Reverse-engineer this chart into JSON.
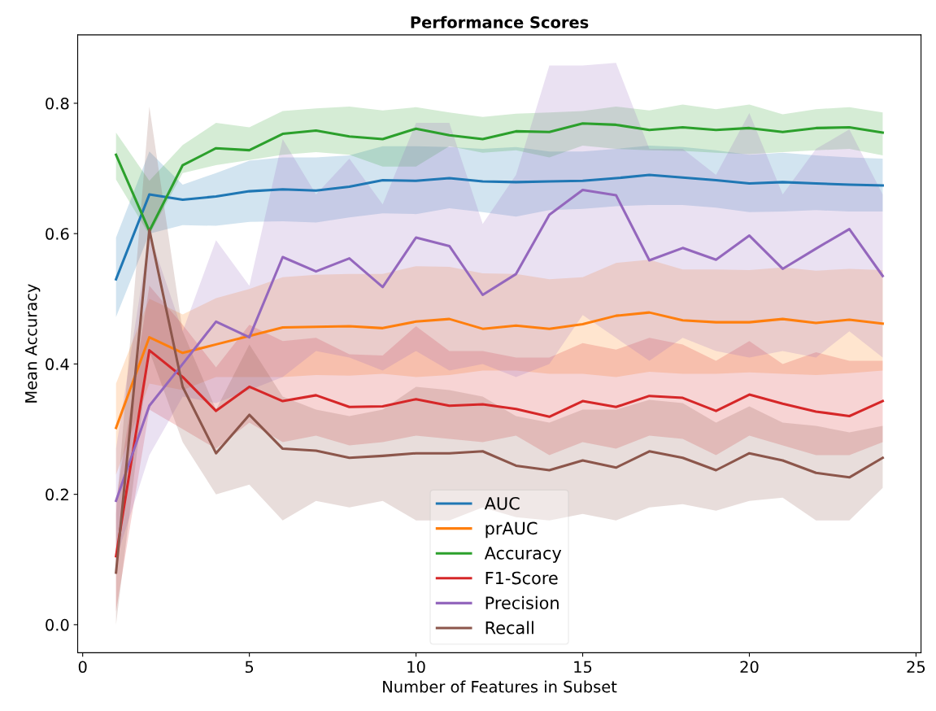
{
  "chart_data": {
    "type": "line",
    "title": "Performance Scores",
    "xlabel": "Number of Features in Subset",
    "ylabel": "Mean Accuracy",
    "x": [
      1,
      2,
      3,
      4,
      5,
      6,
      7,
      8,
      9,
      10,
      11,
      12,
      13,
      14,
      15,
      16,
      17,
      18,
      19,
      20,
      21,
      22,
      23,
      24
    ],
    "xlim": [
      -0.15,
      25.15
    ],
    "xticks": [
      0,
      5,
      10,
      15,
      20,
      25
    ],
    "ylim": [
      -0.043,
      0.905
    ],
    "yticks": [
      {
        "value": 0,
        "label": "0.0"
      },
      0.2,
      0.4,
      0.6,
      0.8
    ],
    "grid": false,
    "legend": "bottom",
    "marker": "none",
    "line_style": "solid",
    "series": [
      {
        "name": "AUC",
        "color": "#1f77b4",
        "values": [
          0.53,
          0.66,
          0.652,
          0.657,
          0.665,
          0.668,
          0.666,
          0.672,
          0.682,
          0.681,
          0.685,
          0.68,
          0.679,
          0.68,
          0.681,
          0.685,
          0.69,
          0.686,
          0.682,
          0.677,
          0.679,
          0.677,
          0.675,
          0.674
        ],
        "lower": [
          0.472,
          0.6,
          0.613,
          0.612,
          0.618,
          0.619,
          0.617,
          0.625,
          0.631,
          0.63,
          0.639,
          0.633,
          0.626,
          0.636,
          0.638,
          0.642,
          0.644,
          0.644,
          0.64,
          0.633,
          0.634,
          0.636,
          0.634,
          0.634
        ],
        "upper": [
          0.594,
          0.726,
          0.675,
          0.693,
          0.712,
          0.717,
          0.717,
          0.72,
          0.734,
          0.734,
          0.733,
          0.73,
          0.733,
          0.726,
          0.726,
          0.73,
          0.735,
          0.733,
          0.728,
          0.721,
          0.724,
          0.72,
          0.717,
          0.715
        ]
      },
      {
        "name": "prAUC",
        "color": "#ff7f0e",
        "values": [
          0.302,
          0.441,
          0.417,
          0.43,
          0.443,
          0.456,
          0.457,
          0.458,
          0.455,
          0.465,
          0.469,
          0.454,
          0.459,
          0.454,
          0.461,
          0.474,
          0.479,
          0.467,
          0.464,
          0.464,
          0.469,
          0.463,
          0.468,
          0.462
        ],
        "lower": [
          0.23,
          0.37,
          0.36,
          0.38,
          0.38,
          0.38,
          0.383,
          0.382,
          0.385,
          0.38,
          0.383,
          0.39,
          0.39,
          0.385,
          0.385,
          0.38,
          0.388,
          0.385,
          0.385,
          0.387,
          0.385,
          0.383,
          0.386,
          0.39
        ],
        "upper": [
          0.37,
          0.5,
          0.476,
          0.501,
          0.515,
          0.533,
          0.537,
          0.538,
          0.538,
          0.55,
          0.549,
          0.539,
          0.538,
          0.53,
          0.533,
          0.555,
          0.56,
          0.545,
          0.545,
          0.544,
          0.548,
          0.543,
          0.546,
          0.544
        ]
      },
      {
        "name": "Accuracy",
        "color": "#2ca02c",
        "values": [
          0.721,
          0.604,
          0.705,
          0.731,
          0.728,
          0.753,
          0.758,
          0.749,
          0.745,
          0.761,
          0.751,
          0.745,
          0.757,
          0.756,
          0.769,
          0.767,
          0.759,
          0.763,
          0.759,
          0.762,
          0.756,
          0.762,
          0.763,
          0.755
        ],
        "lower": [
          0.683,
          0.598,
          0.693,
          0.705,
          0.713,
          0.721,
          0.725,
          0.721,
          0.703,
          0.703,
          0.734,
          0.724,
          0.728,
          0.717,
          0.735,
          0.73,
          0.728,
          0.727,
          0.724,
          0.722,
          0.725,
          0.728,
          0.73,
          0.72
        ],
        "upper": [
          0.755,
          0.681,
          0.736,
          0.77,
          0.763,
          0.788,
          0.792,
          0.795,
          0.789,
          0.794,
          0.786,
          0.779,
          0.784,
          0.786,
          0.788,
          0.795,
          0.789,
          0.798,
          0.791,
          0.798,
          0.783,
          0.791,
          0.794,
          0.786
        ]
      },
      {
        "name": "F1-Score",
        "color": "#d62728",
        "values": [
          0.105,
          0.421,
          0.38,
          0.328,
          0.365,
          0.343,
          0.352,
          0.334,
          0.335,
          0.346,
          0.336,
          0.338,
          0.331,
          0.319,
          0.343,
          0.334,
          0.351,
          0.348,
          0.328,
          0.353,
          0.339,
          0.327,
          0.32,
          0.343
        ],
        "lower": [
          0.02,
          0.33,
          0.3,
          0.27,
          0.31,
          0.28,
          0.29,
          0.275,
          0.28,
          0.29,
          0.285,
          0.28,
          0.29,
          0.26,
          0.28,
          0.27,
          0.29,
          0.285,
          0.26,
          0.29,
          0.275,
          0.26,
          0.26,
          0.28
        ],
        "upper": [
          0.19,
          0.52,
          0.46,
          0.395,
          0.46,
          0.435,
          0.44,
          0.415,
          0.413,
          0.458,
          0.42,
          0.42,
          0.41,
          0.41,
          0.432,
          0.422,
          0.44,
          0.43,
          0.405,
          0.435,
          0.4,
          0.418,
          0.405,
          0.405
        ]
      },
      {
        "name": "Precision",
        "color": "#9467bd",
        "values": [
          0.19,
          0.336,
          0.4,
          0.465,
          0.441,
          0.564,
          0.542,
          0.562,
          0.518,
          0.594,
          0.581,
          0.506,
          0.538,
          0.629,
          0.667,
          0.659,
          0.559,
          0.578,
          0.56,
          0.597,
          0.546,
          0.577,
          0.607,
          0.535
        ],
        "lower": [
          0.1,
          0.26,
          0.35,
          0.34,
          0.36,
          0.38,
          0.42,
          0.41,
          0.39,
          0.42,
          0.39,
          0.4,
          0.38,
          0.4,
          0.475,
          0.44,
          0.405,
          0.44,
          0.42,
          0.41,
          0.42,
          0.41,
          0.45,
          0.41
        ],
        "upper": [
          0.27,
          0.6,
          0.45,
          0.59,
          0.52,
          0.745,
          0.66,
          0.715,
          0.645,
          0.77,
          0.77,
          0.615,
          0.69,
          0.858,
          0.858,
          0.862,
          0.73,
          0.73,
          0.69,
          0.785,
          0.66,
          0.73,
          0.76,
          0.66
        ]
      },
      {
        "name": "Recall",
        "color": "#8c564b",
        "values": [
          0.08,
          0.606,
          0.365,
          0.263,
          0.322,
          0.27,
          0.267,
          0.256,
          0.259,
          0.263,
          0.263,
          0.266,
          0.244,
          0.237,
          0.252,
          0.241,
          0.266,
          0.256,
          0.237,
          0.263,
          0.252,
          0.233,
          0.226,
          0.256
        ],
        "lower": [
          0.0,
          0.42,
          0.28,
          0.2,
          0.215,
          0.16,
          0.19,
          0.18,
          0.19,
          0.16,
          0.16,
          0.18,
          0.165,
          0.16,
          0.17,
          0.16,
          0.18,
          0.185,
          0.175,
          0.19,
          0.195,
          0.16,
          0.16,
          0.21
        ],
        "upper": [
          0.17,
          0.795,
          0.45,
          0.33,
          0.43,
          0.35,
          0.33,
          0.32,
          0.33,
          0.365,
          0.36,
          0.35,
          0.32,
          0.31,
          0.33,
          0.33,
          0.345,
          0.34,
          0.31,
          0.335,
          0.31,
          0.305,
          0.295,
          0.305
        ]
      }
    ]
  }
}
